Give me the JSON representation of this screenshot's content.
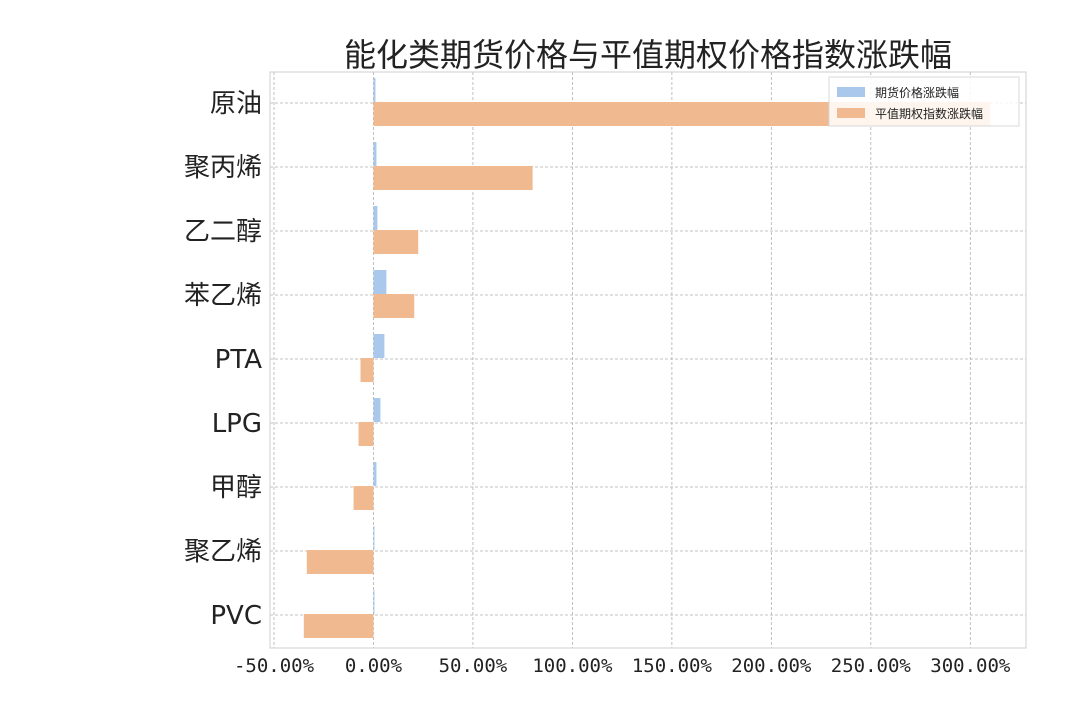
{
  "chart_data": {
    "type": "bar",
    "orientation": "horizontal",
    "title": "能化类期货价格与平值期权价格指数涨跌幅",
    "xlabel": "",
    "ylabel": "",
    "categories": [
      "原油",
      "聚丙烯",
      "乙二醇",
      "苯乙烯",
      "PTA",
      "LPG",
      "甲醇",
      "聚乙烯",
      "PVC"
    ],
    "series": [
      {
        "name": "期货价格涨跌幅",
        "color": "#a9c8ec",
        "values": [
          1.0,
          1.5,
          2.0,
          6.5,
          5.5,
          3.5,
          1.5,
          0.5,
          0.0
        ]
      },
      {
        "name": "平值期权指数涨跌幅",
        "color": "#f0b990",
        "values": [
          310.0,
          80.0,
          22.5,
          20.5,
          -6.5,
          -7.5,
          -10.0,
          -33.5,
          -35.0
        ]
      }
    ],
    "xlim": [
      -52,
      328
    ],
    "xticks": [
      -50,
      0,
      50,
      100,
      150,
      200,
      250,
      300
    ],
    "xtick_labels": [
      "-50.00%",
      "0.00%",
      "50.00%",
      "100.00%",
      "150.00%",
      "200.00%",
      "250.00%",
      "300.00%"
    ],
    "grid": true,
    "legend": "top-right"
  }
}
